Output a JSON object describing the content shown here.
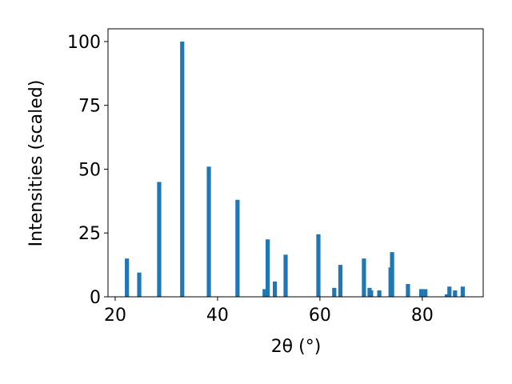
{
  "chart_data": {
    "type": "bar",
    "x": [
      22.3,
      24.7,
      28.6,
      33.1,
      38.3,
      43.9,
      49.2,
      49.8,
      51.2,
      53.3,
      59.7,
      62.8,
      64.0,
      68.6,
      69.7,
      70.0,
      71.6,
      73.8,
      74.1,
      77.2,
      79.8,
      80.6,
      84.8,
      85.3,
      86.4,
      87.9
    ],
    "values": [
      15,
      9.5,
      45,
      100,
      51,
      38,
      3,
      22.5,
      6,
      16.5,
      24.5,
      3.5,
      12.5,
      15,
      3.5,
      2.5,
      2.5,
      11.5,
      17.5,
      5,
      3,
      3,
      1,
      4,
      2.5,
      4
    ],
    "color": "#1f77b4",
    "x_label": "2θ (°)",
    "y_label": "Intensities (scaled)",
    "xlim": [
      18.6,
      91.9
    ],
    "xticks": [
      20,
      40,
      60,
      80
    ],
    "ylim": [
      0,
      105
    ],
    "yticks": [
      0,
      25,
      50,
      75,
      100
    ]
  }
}
